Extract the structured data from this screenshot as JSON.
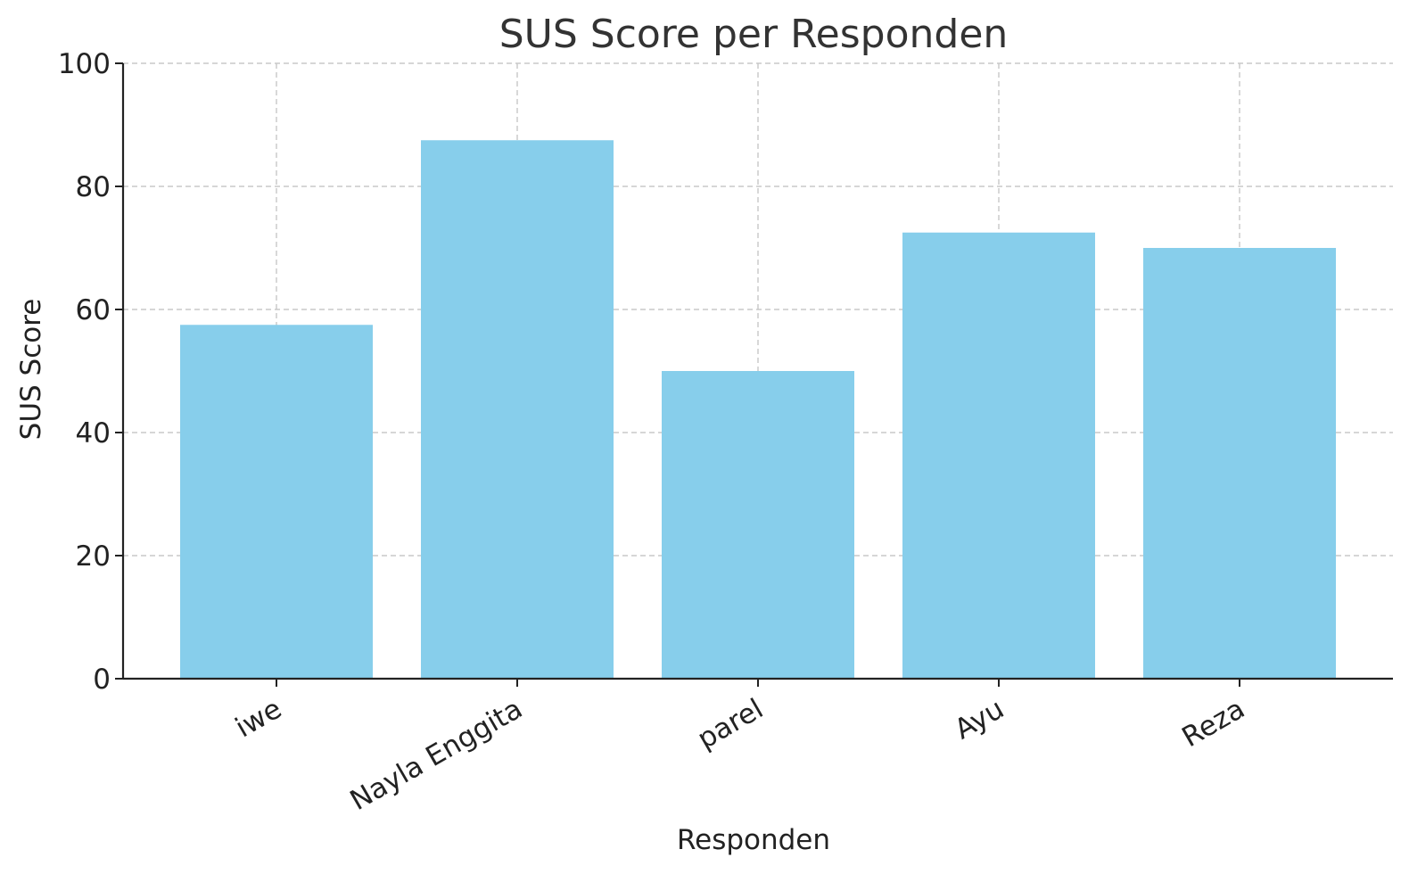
{
  "chart_data": {
    "type": "bar",
    "title": "SUS Score per Responden",
    "xlabel": "Responden",
    "ylabel": "SUS Score",
    "categories": [
      "iwe",
      "Nayla Enggita",
      "parel",
      "Ayu",
      "Reza"
    ],
    "values": [
      57.5,
      87.5,
      50.0,
      72.5,
      70.0
    ],
    "ylim": [
      0,
      100
    ],
    "yticks": [
      "0",
      "20",
      "40",
      "60",
      "80",
      "100"
    ],
    "grid": true,
    "bar_color": "#87ceeb",
    "legend": "none"
  }
}
